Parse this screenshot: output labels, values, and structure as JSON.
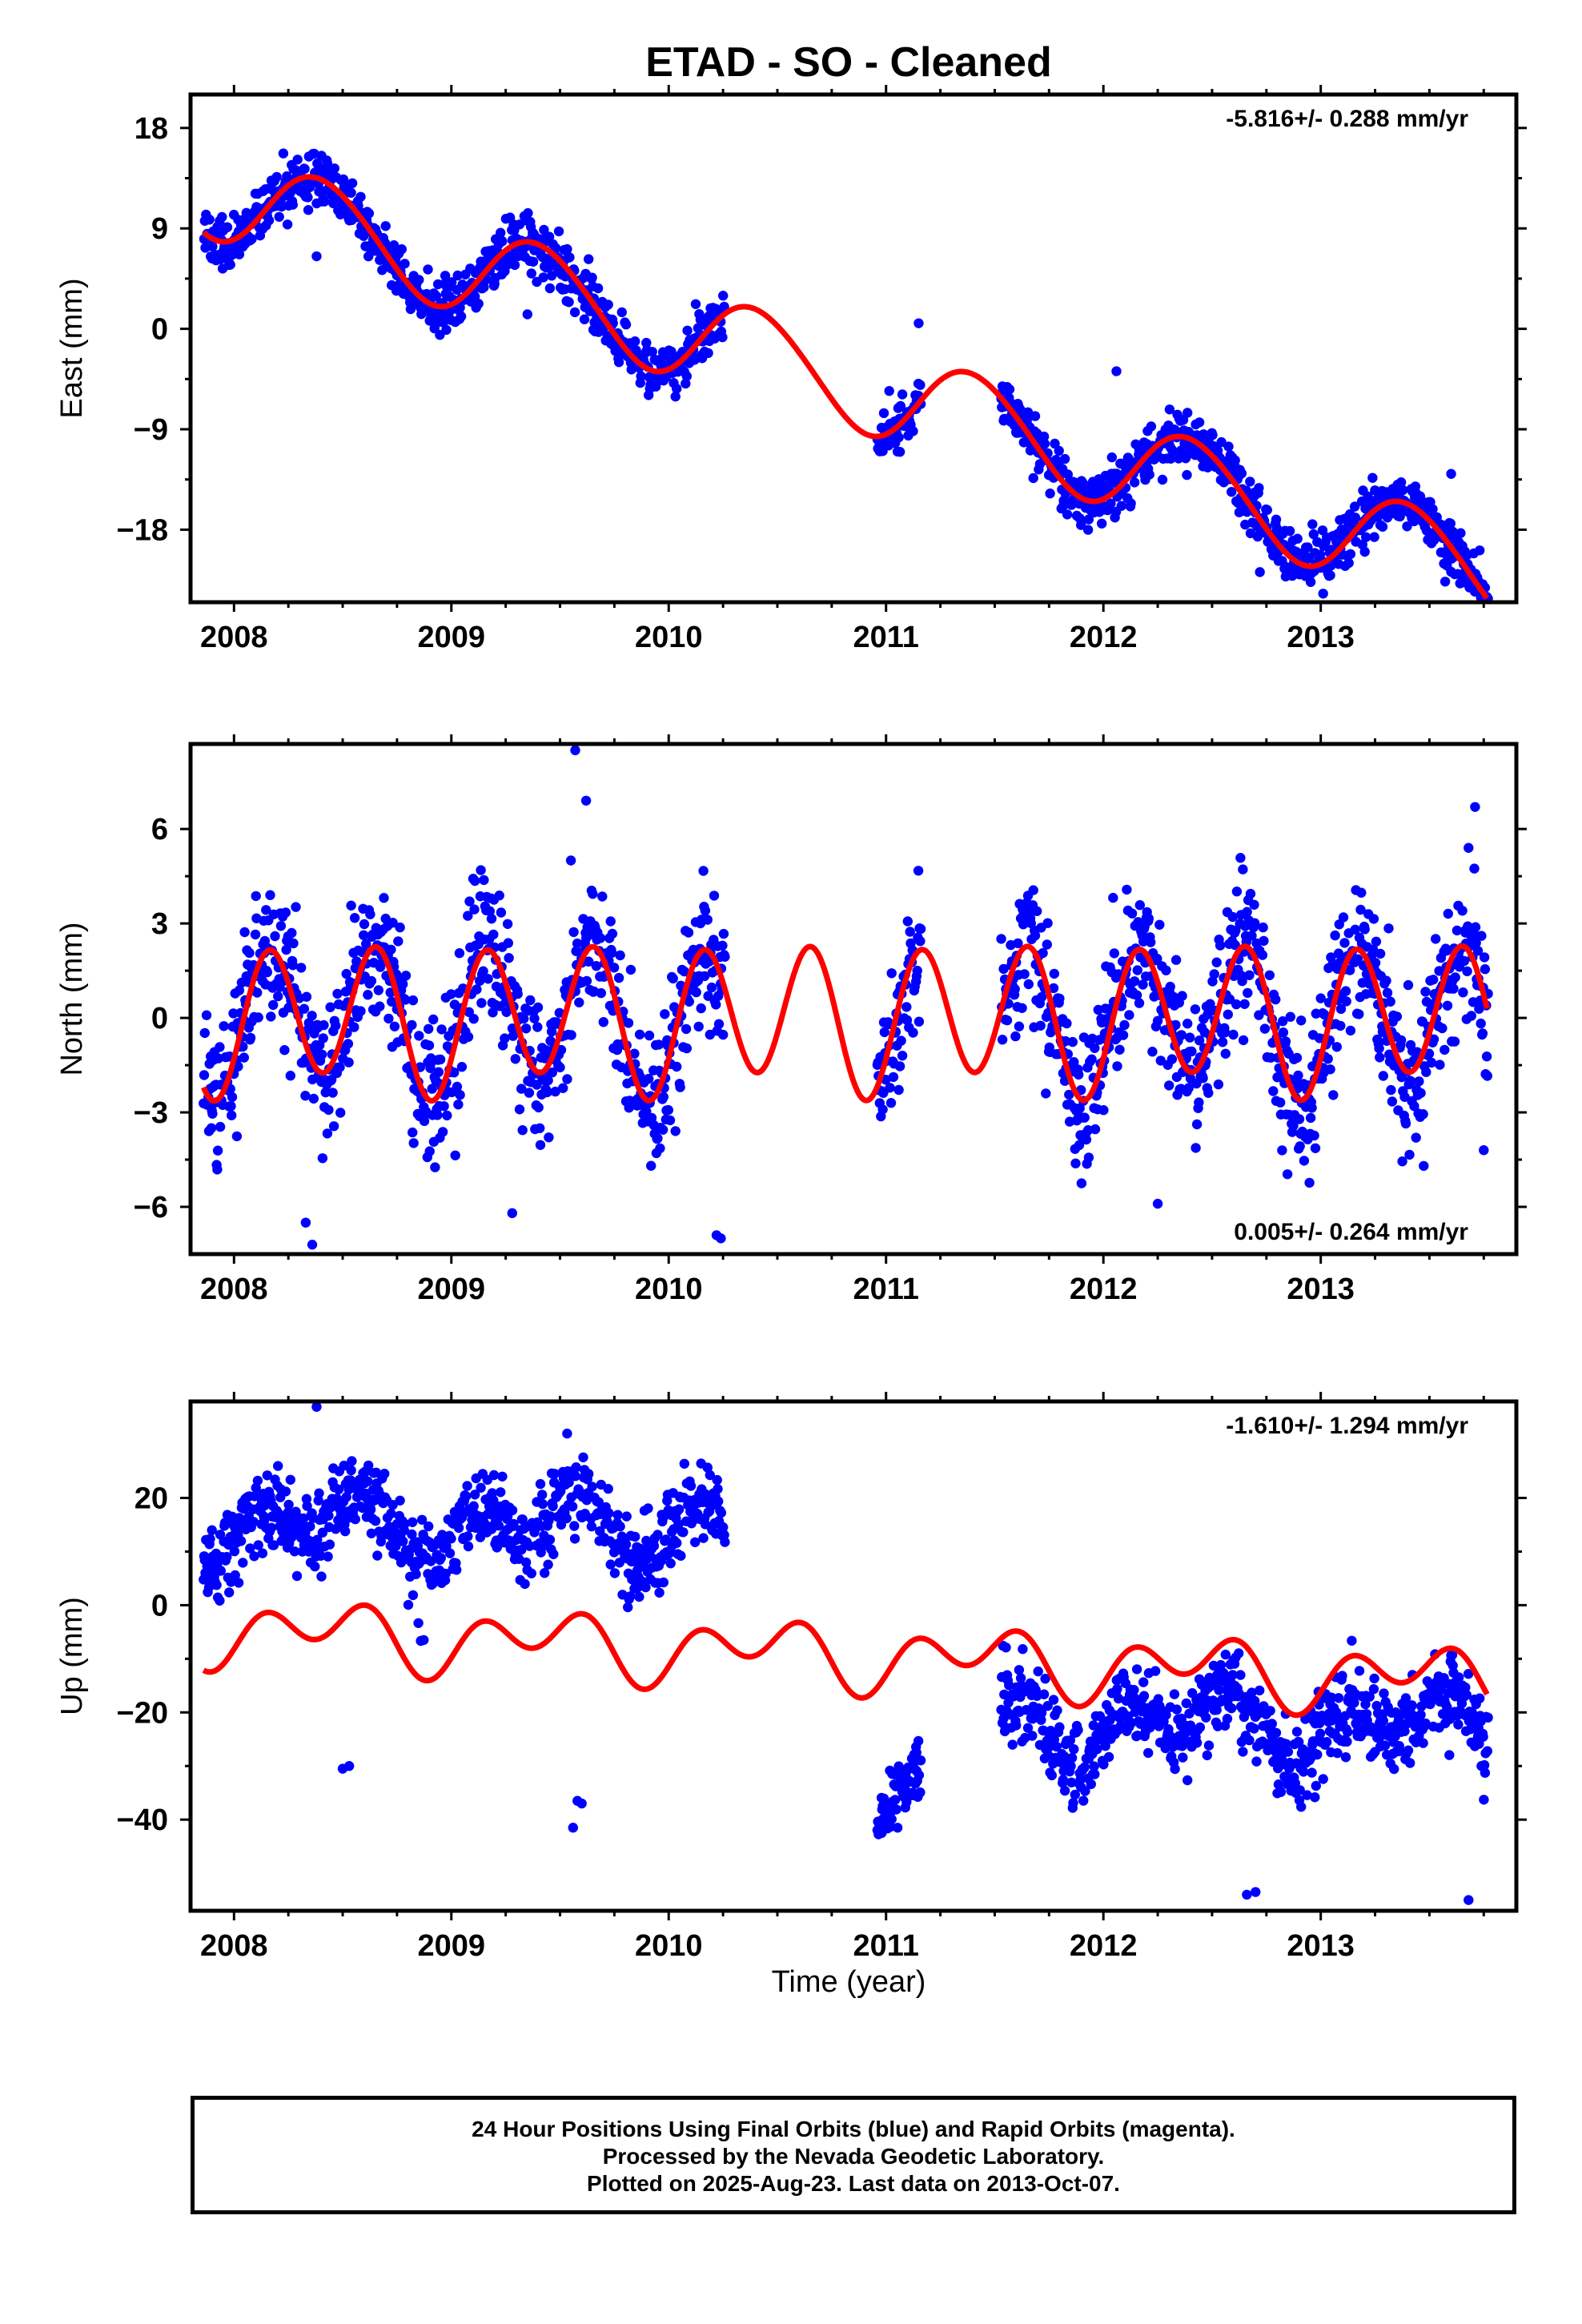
{
  "title": "ETAD  - SO - Cleaned",
  "xlabel": "Time (year)",
  "footer": {
    "line1": "24 Hour Positions Using Final Orbits (blue) and Rapid Orbits (magenta).",
    "line2": "Processed by the Nevada Geodetic Laboratory.",
    "line3": "Plotted on 2025-Aug-23. Last data on 2013-Oct-07."
  },
  "colors": {
    "data": "#0000ff",
    "fit": "#ff0000",
    "frame": "#000000"
  },
  "chart_data": [
    {
      "type": "scatter",
      "name": "east",
      "ylabel": "East (mm)",
      "rate": "-5.816+/- 0.288 mm/yr",
      "rate_position": "top-right",
      "xlim": [
        2007.8,
        2013.9
      ],
      "ylim": [
        -24.5,
        21
      ],
      "xticks": [
        2008,
        2009,
        2010,
        2011,
        2012,
        2013
      ],
      "yticks": [
        18,
        9,
        0,
        -9,
        -18
      ],
      "ytick_labels": [
        "18",
        "9",
        "0",
        "−9",
        "−18"
      ],
      "fit": {
        "offset": 11.7,
        "trend": -5.816,
        "annual_sin": 2.3,
        "annual_cos": -3.4,
        "semi_sin": 0.0,
        "semi_cos": -0.3
      },
      "segments": [
        {
          "x": [
            2007.86,
            2010.26
          ],
          "noise": 1.2
        },
        {
          "x": [
            2010.96,
            2011.16
          ],
          "noise": 1.1
        },
        {
          "x": [
            2011.53,
            2013.77
          ],
          "noise": 1.2
        }
      ],
      "outliers": [
        {
          "x": 2008.38,
          "y": 6.5
        },
        {
          "x": 2009.35,
          "y": 1.3
        },
        {
          "x": 2010.0,
          "y": -2.0
        },
        {
          "x": 2011.15,
          "y": 0.5
        },
        {
          "x": 2011.15,
          "y": -6.0
        },
        {
          "x": 2012.06,
          "y": -3.8
        },
        {
          "x": 2012.72,
          "y": -21.8
        },
        {
          "x": 2013.74,
          "y": -24.0
        },
        {
          "x": 2013.6,
          "y": -13.0
        }
      ]
    },
    {
      "type": "scatter",
      "name": "north",
      "ylabel": "North (mm)",
      "rate": "0.005+/- 0.264 mm/yr",
      "rate_position": "bottom-right",
      "xlim": [
        2007.8,
        2013.9
      ],
      "ylim": [
        -7.5,
        8.7
      ],
      "xticks": [
        2008,
        2009,
        2010,
        2011,
        2012,
        2013
      ],
      "yticks": [
        6,
        3,
        0,
        -3,
        -6
      ],
      "ytick_labels": [
        "6",
        "3",
        "0",
        "−3",
        "−6"
      ],
      "fit": {
        "offset": 0.0,
        "trend": 0.005,
        "annual_sin": 0.2,
        "annual_cos": -0.4,
        "semi_sin": 2.0,
        "semi_cos": -0.9
      },
      "segments": [
        {
          "x": [
            2007.86,
            2010.26
          ],
          "noise": 1.2
        },
        {
          "x": [
            2010.96,
            2011.16
          ],
          "noise": 1.0
        },
        {
          "x": [
            2011.53,
            2013.77
          ],
          "noise": 1.2
        }
      ],
      "outliers": [
        {
          "x": 2008.36,
          "y": -7.2
        },
        {
          "x": 2008.33,
          "y": -6.5
        },
        {
          "x": 2009.28,
          "y": -6.2
        },
        {
          "x": 2009.57,
          "y": 8.5
        },
        {
          "x": 2009.62,
          "y": 6.9
        },
        {
          "x": 2009.55,
          "y": 5.0
        },
        {
          "x": 2010.24,
          "y": -7.0
        },
        {
          "x": 2010.22,
          "y": -6.9
        },
        {
          "x": 2012.25,
          "y": -5.9
        },
        {
          "x": 2013.71,
          "y": 6.7
        },
        {
          "x": 2013.68,
          "y": 5.4
        },
        {
          "x": 2013.75,
          "y": -4.2
        }
      ]
    },
    {
      "type": "scatter",
      "name": "up",
      "ylabel": "Up (mm)",
      "rate": "-1.610+/- 1.294 mm/yr",
      "rate_position": "top-right",
      "xlim": [
        2007.8,
        2013.9
      ],
      "ylim": [
        -57,
        38
      ],
      "xticks": [
        2008,
        2009,
        2010,
        2011,
        2012,
        2013
      ],
      "yticks": [
        20,
        0,
        -20,
        -40
      ],
      "ytick_labels": [
        "20",
        "0",
        "−20",
        "−40"
      ],
      "fit": {
        "offset": -4.8,
        "trend": -1.61,
        "annual_sin": 1.6,
        "annual_cos": -3.2,
        "semi_sin": 4.4,
        "semi_cos": -0.2
      },
      "segments": [
        {
          "x": [
            2007.86,
            2010.26
          ],
          "noise": 3.8,
          "offset": 15.0
        },
        {
          "x": [
            2010.96,
            2011.16
          ],
          "noise": 3.0,
          "offset": -35.0
        },
        {
          "x": [
            2011.53,
            2013.77
          ],
          "noise": 3.8,
          "offset": -22.0
        }
      ],
      "outliers": [
        {
          "x": 2008.5,
          "y": -30.5
        },
        {
          "x": 2008.53,
          "y": -30.0
        },
        {
          "x": 2009.56,
          "y": -41.5
        },
        {
          "x": 2009.6,
          "y": -37.0
        },
        {
          "x": 2009.58,
          "y": -36.5
        },
        {
          "x": 2008.38,
          "y": 37.0
        },
        {
          "x": 2012.66,
          "y": -54.0
        },
        {
          "x": 2012.7,
          "y": -53.5
        },
        {
          "x": 2013.68,
          "y": -55.0
        },
        {
          "x": 2011.14,
          "y": -27.5
        },
        {
          "x": 2010.98,
          "y": -42.5
        }
      ]
    }
  ]
}
